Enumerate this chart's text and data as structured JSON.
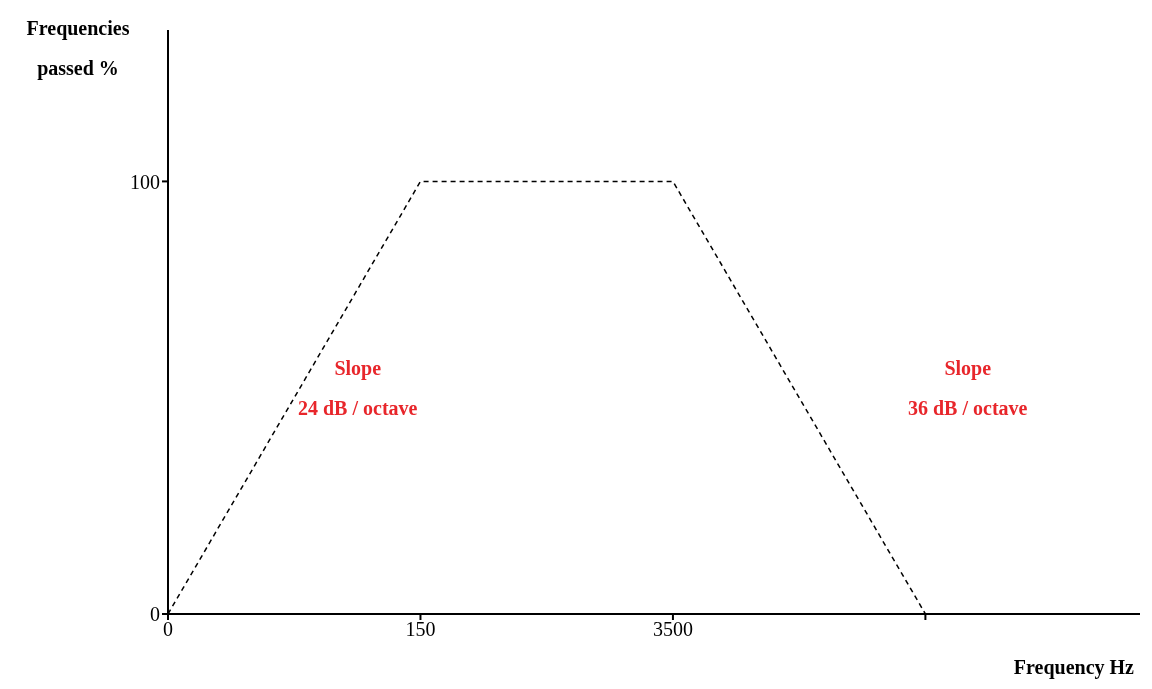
{
  "chart_data": {
    "type": "line",
    "ylabel": "Frequencies passed %",
    "xlabel": "Frequency Hz",
    "categories": [
      "0",
      "150",
      "3500",
      null
    ],
    "series": [
      {
        "color": "#000000",
        "values": [
          0,
          100,
          100,
          0
        ]
      }
    ],
    "ylim": [
      0,
      135
    ],
    "yticks": [
      0,
      100
    ],
    "marker": "none",
    "line_style": "dashed",
    "annotations": [
      "Slope\n24 dB / octave",
      "Slope\n36 dB / octave"
    ]
  }
}
